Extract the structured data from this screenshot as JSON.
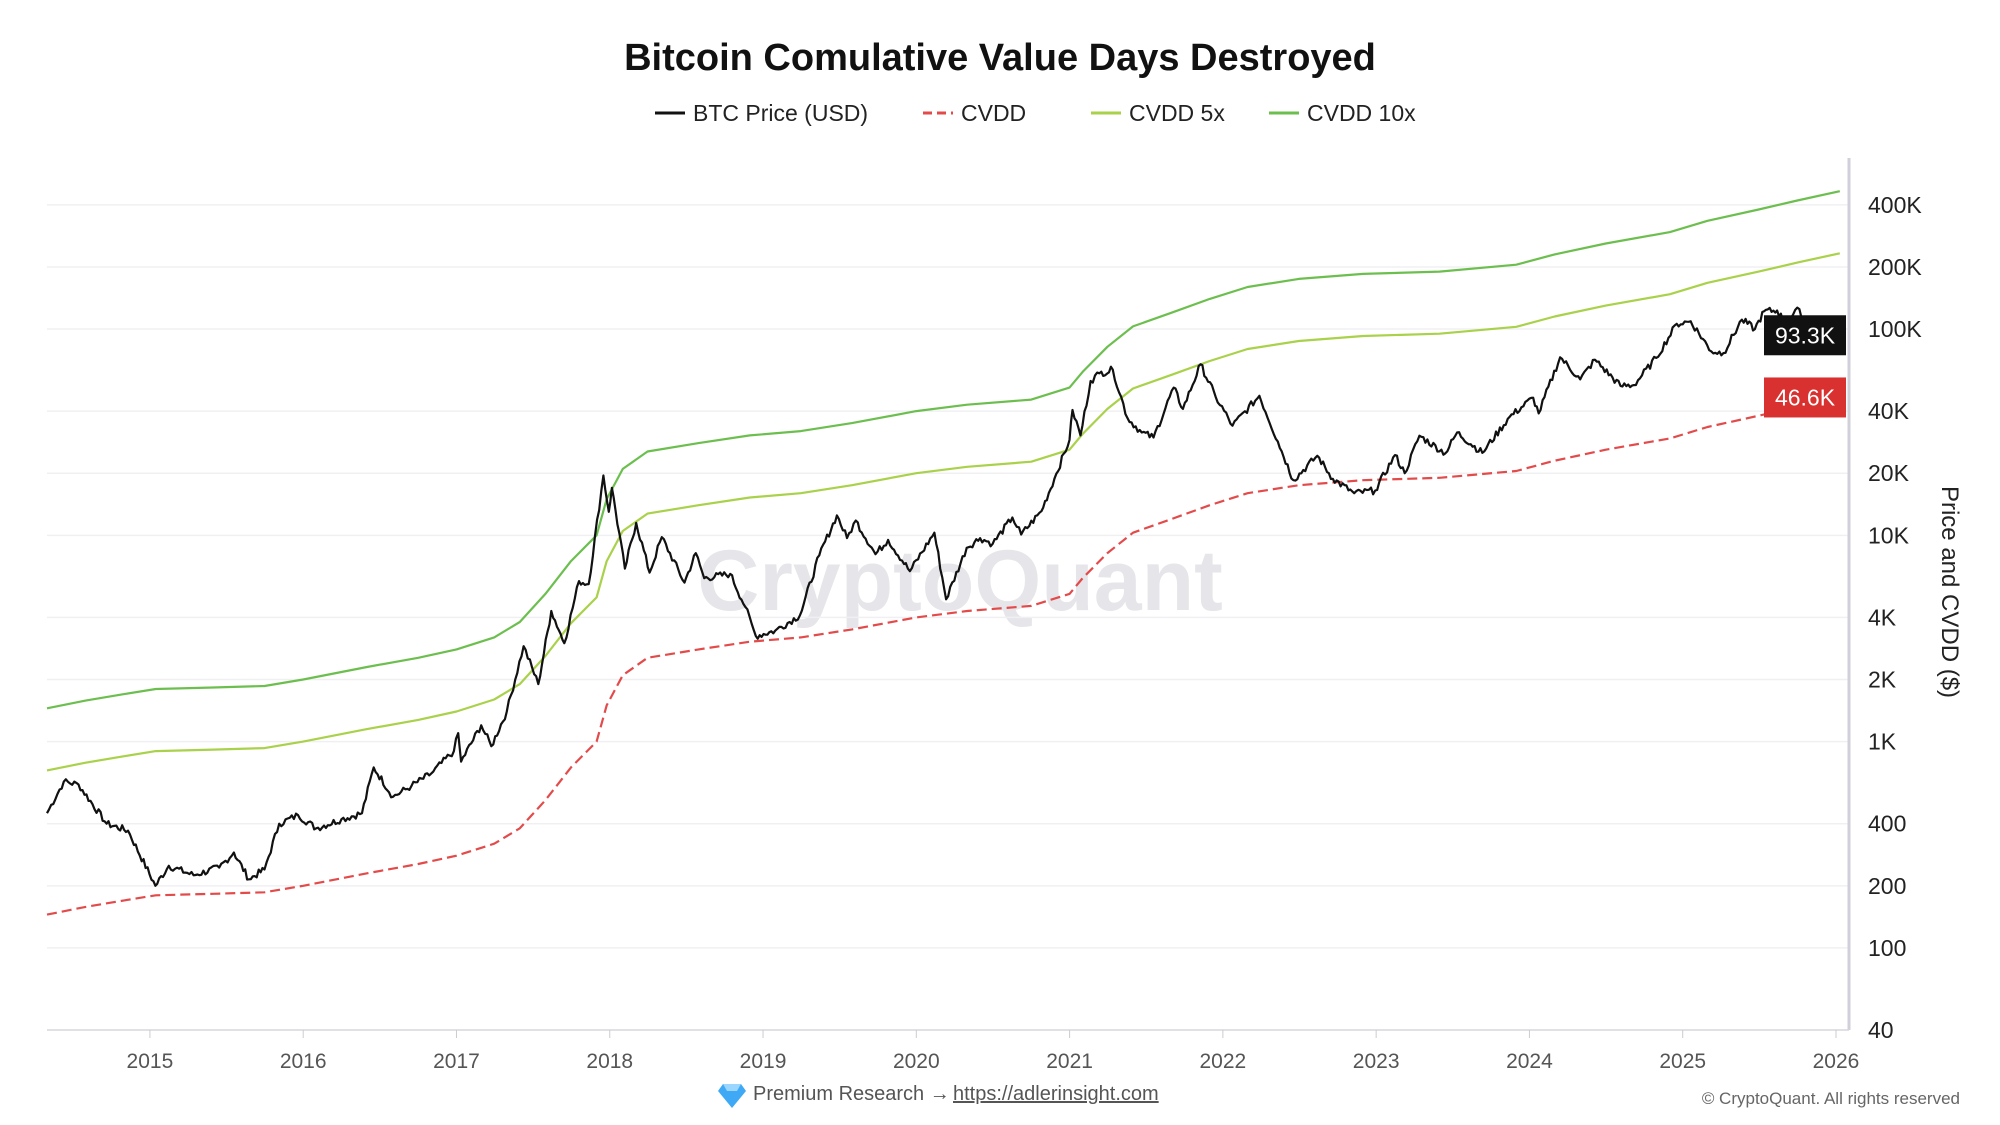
{
  "chart_data": {
    "type": "line",
    "title": "Bitcoin Comulative Value Days Destroyed",
    "ylabel": "Price and CVDD ($)",
    "y_scale": "log",
    "ylim": [
      40,
      660000
    ],
    "xlim": [
      "2014-05-01",
      "2026-02-01"
    ],
    "grid": true,
    "legend_placement": "top-center",
    "y_ticks": [
      {
        "v": 400000,
        "label": "400K"
      },
      {
        "v": 200000,
        "label": "200K"
      },
      {
        "v": 100000,
        "label": "100K"
      },
      {
        "v": 40000,
        "label": "40K"
      },
      {
        "v": 20000,
        "label": "20K"
      },
      {
        "v": 10000,
        "label": "10K"
      },
      {
        "v": 4000,
        "label": "4K"
      },
      {
        "v": 2000,
        "label": "2K"
      },
      {
        "v": 1000,
        "label": "1K"
      },
      {
        "v": 400,
        "label": "400"
      },
      {
        "v": 200,
        "label": "200"
      },
      {
        "v": 100,
        "label": "100"
      },
      {
        "v": 40,
        "label": "40"
      }
    ],
    "x_ticks": [
      "2015",
      "2016",
      "2017",
      "2018",
      "2019",
      "2020",
      "2021",
      "2022",
      "2023",
      "2024",
      "2025",
      "2026"
    ],
    "last_value_labels": [
      {
        "series": "BTC Price (USD)",
        "label": "93.3K",
        "color": "#111111"
      },
      {
        "series": "CVDD",
        "label": "46.6K",
        "color": "#d93030"
      }
    ],
    "series": [
      {
        "name": "BTC Price (USD)",
        "color": "#111111",
        "style": "solid",
        "points": [
          [
            "2014-05-01",
            450
          ],
          [
            "2014-06-10",
            640
          ],
          [
            "2014-07-15",
            620
          ],
          [
            "2014-09-20",
            400
          ],
          [
            "2014-11-10",
            370
          ],
          [
            "2015-01-14",
            200
          ],
          [
            "2015-02-15",
            250
          ],
          [
            "2015-04-15",
            225
          ],
          [
            "2015-06-15",
            245
          ],
          [
            "2015-07-20",
            290
          ],
          [
            "2015-08-25",
            215
          ],
          [
            "2015-10-01",
            240
          ],
          [
            "2015-11-05",
            400
          ],
          [
            "2015-12-20",
            440
          ],
          [
            "2016-02-01",
            380
          ],
          [
            "2016-04-01",
            420
          ],
          [
            "2016-05-20",
            450
          ],
          [
            "2016-06-17",
            750
          ],
          [
            "2016-08-02",
            540
          ],
          [
            "2016-09-15",
            610
          ],
          [
            "2016-11-01",
            700
          ],
          [
            "2016-12-25",
            900
          ],
          [
            "2017-01-05",
            1100
          ],
          [
            "2017-01-12",
            800
          ],
          [
            "2017-03-01",
            1200
          ],
          [
            "2017-03-25",
            950
          ],
          [
            "2017-05-01",
            1400
          ],
          [
            "2017-06-10",
            2900
          ],
          [
            "2017-07-15",
            1900
          ],
          [
            "2017-08-15",
            4300
          ],
          [
            "2017-09-15",
            3000
          ],
          [
            "2017-10-20",
            6000
          ],
          [
            "2017-11-12",
            5800
          ],
          [
            "2017-12-17",
            19500
          ],
          [
            "2017-12-30",
            13000
          ],
          [
            "2018-01-06",
            17000
          ],
          [
            "2018-02-06",
            6900
          ],
          [
            "2018-03-05",
            11500
          ],
          [
            "2018-04-06",
            6600
          ],
          [
            "2018-05-05",
            9800
          ],
          [
            "2018-06-28",
            5900
          ],
          [
            "2018-07-25",
            8200
          ],
          [
            "2018-08-14",
            6200
          ],
          [
            "2018-10-15",
            6500
          ],
          [
            "2018-11-20",
            4500
          ],
          [
            "2018-12-15",
            3250
          ],
          [
            "2019-01-30",
            3450
          ],
          [
            "2019-03-30",
            4100
          ],
          [
            "2019-05-15",
            8000
          ],
          [
            "2019-06-26",
            12500
          ],
          [
            "2019-07-20",
            9700
          ],
          [
            "2019-08-10",
            11800
          ],
          [
            "2019-09-26",
            8100
          ],
          [
            "2019-10-26",
            9500
          ],
          [
            "2019-12-17",
            6700
          ],
          [
            "2020-02-13",
            10300
          ],
          [
            "2020-03-12",
            4900
          ],
          [
            "2020-04-30",
            8700
          ],
          [
            "2020-06-01",
            9700
          ],
          [
            "2020-07-01",
            9100
          ],
          [
            "2020-08-17",
            12200
          ],
          [
            "2020-09-07",
            10100
          ],
          [
            "2020-10-25",
            13100
          ],
          [
            "2020-11-25",
            18800
          ],
          [
            "2020-12-31",
            29000
          ],
          [
            "2021-01-08",
            40500
          ],
          [
            "2021-01-27",
            30500
          ],
          [
            "2021-02-20",
            56000
          ],
          [
            "2021-03-13",
            61000
          ],
          [
            "2021-04-14",
            63500
          ],
          [
            "2021-05-19",
            37000
          ],
          [
            "2021-06-22",
            31500
          ],
          [
            "2021-07-20",
            29800
          ],
          [
            "2021-09-06",
            52000
          ],
          [
            "2021-09-28",
            41000
          ],
          [
            "2021-11-09",
            67500
          ],
          [
            "2021-12-15",
            47000
          ],
          [
            "2022-01-24",
            34000
          ],
          [
            "2022-03-29",
            47500
          ],
          [
            "2022-05-12",
            28500
          ],
          [
            "2022-06-18",
            18500
          ],
          [
            "2022-08-14",
            24300
          ],
          [
            "2022-09-20",
            18800
          ],
          [
            "2022-11-10",
            16000
          ],
          [
            "2022-12-30",
            16500
          ],
          [
            "2023-02-15",
            24500
          ],
          [
            "2023-03-10",
            20000
          ],
          [
            "2023-04-14",
            30400
          ],
          [
            "2023-06-15",
            25000
          ],
          [
            "2023-07-13",
            31500
          ],
          [
            "2023-09-11",
            25100
          ],
          [
            "2023-11-15",
            37500
          ],
          [
            "2024-01-10",
            46500
          ],
          [
            "2024-01-23",
            39000
          ],
          [
            "2024-03-14",
            73000
          ],
          [
            "2024-05-01",
            57000
          ],
          [
            "2024-06-05",
            71000
          ],
          [
            "2024-08-05",
            53000
          ],
          [
            "2024-09-06",
            53500
          ],
          [
            "2024-10-29",
            72500
          ],
          [
            "2024-12-17",
            106000
          ],
          [
            "2025-01-20",
            109000
          ],
          [
            "2025-03-10",
            78000
          ],
          [
            "2025-04-08",
            76500
          ],
          [
            "2025-05-22",
            111000
          ],
          [
            "2025-06-22",
            100000
          ],
          [
            "2025-07-14",
            122000
          ],
          [
            "2025-08-14",
            123000
          ],
          [
            "2025-09-01",
            108000
          ],
          [
            "2025-10-06",
            125000
          ],
          [
            "2025-10-20",
            108000
          ],
          [
            "2025-11-21",
            84000
          ],
          [
            "2025-12-15",
            88000
          ],
          [
            "2026-01-10",
            93300
          ]
        ]
      },
      {
        "name": "CVDD",
        "color": "#e34b4b",
        "style": "dashed",
        "points": [
          [
            "2014-05-01",
            145
          ],
          [
            "2014-08-01",
            158
          ],
          [
            "2014-11-01",
            170
          ],
          [
            "2015-01-15",
            180
          ],
          [
            "2015-06-01",
            183
          ],
          [
            "2015-10-01",
            186
          ],
          [
            "2016-01-01",
            200
          ],
          [
            "2016-06-01",
            230
          ],
          [
            "2016-10-01",
            255
          ],
          [
            "2017-01-01",
            280
          ],
          [
            "2017-04-01",
            320
          ],
          [
            "2017-06-01",
            380
          ],
          [
            "2017-08-01",
            520
          ],
          [
            "2017-10-01",
            750
          ],
          [
            "2017-12-01",
            1000
          ],
          [
            "2017-12-25",
            1500
          ],
          [
            "2018-02-01",
            2100
          ],
          [
            "2018-04-01",
            2550
          ],
          [
            "2018-08-01",
            2800
          ],
          [
            "2018-12-01",
            3050
          ],
          [
            "2019-04-01",
            3200
          ],
          [
            "2019-08-01",
            3500
          ],
          [
            "2020-01-01",
            4000
          ],
          [
            "2020-05-01",
            4300
          ],
          [
            "2020-10-01",
            4550
          ],
          [
            "2020-12-31",
            5200
          ],
          [
            "2021-02-01",
            6200
          ],
          [
            "2021-04-01",
            8200
          ],
          [
            "2021-06-01",
            10300
          ],
          [
            "2021-09-01",
            12000
          ],
          [
            "2021-12-01",
            14000
          ],
          [
            "2022-03-01",
            16000
          ],
          [
            "2022-07-01",
            17500
          ],
          [
            "2022-12-01",
            18500
          ],
          [
            "2023-06-01",
            19000
          ],
          [
            "2023-12-01",
            20500
          ],
          [
            "2024-03-01",
            23000
          ],
          [
            "2024-07-01",
            26000
          ],
          [
            "2024-12-01",
            29500
          ],
          [
            "2025-03-01",
            33500
          ],
          [
            "2025-07-01",
            38000
          ],
          [
            "2025-10-01",
            42000
          ],
          [
            "2026-01-10",
            46600
          ]
        ]
      },
      {
        "name": "CVDD 5x",
        "color": "#a9d14a",
        "style": "solid",
        "multiple_of": "CVDD",
        "multiplier": 5
      },
      {
        "name": "CVDD 10x",
        "color": "#6cbf4e",
        "style": "solid",
        "multiple_of": "CVDD",
        "multiplier": 10
      }
    ]
  },
  "watermark": "CryptoQuant",
  "footer": {
    "gem_icon": "gem-icon",
    "premium_text": "Premium Research →",
    "link_text": "https://adlerinsight.com",
    "copyright": "© CryptoQuant. All rights reserved"
  }
}
